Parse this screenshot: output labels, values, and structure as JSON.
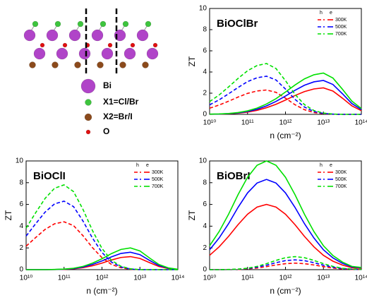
{
  "structure": {
    "legend": [
      "Bi",
      "X1=Cl/Br",
      "X2=Br/I",
      "O"
    ]
  },
  "chart_data": [
    {
      "type": "line",
      "title": "BiOClBr",
      "xlabel": "n (cm⁻²)",
      "ylabel": "ZT",
      "xscale": "log",
      "legend_headers": [
        "h",
        "e"
      ],
      "legend": "upper right",
      "x": [
        10000000000.0,
        17800000000.0,
        31600000000.0,
        56200000000.0,
        100000000000.0,
        178000000000.0,
        316000000000.0,
        562000000000.0,
        1000000000000.0,
        1780000000000.0,
        3160000000000.0,
        5620000000000.0,
        10000000000000.0,
        17800000000000.0,
        31600000000000.0,
        56200000000000.0,
        100000000000000.0
      ],
      "xlim": [
        10000000000.0,
        100000000000000.0
      ],
      "xticks": [
        {
          "value": 10000000000.0,
          "label": "10¹⁰"
        },
        {
          "value": 100000000000.0,
          "label": "10¹¹"
        },
        {
          "value": 1000000000000.0,
          "label": "10¹²"
        },
        {
          "value": 10000000000000.0,
          "label": "10¹³"
        },
        {
          "value": 100000000000000.0,
          "label": "10¹⁴"
        }
      ],
      "ylim": [
        0,
        10
      ],
      "yticks": [
        0,
        2,
        4,
        6,
        8,
        10
      ],
      "series": [
        {
          "name": "300K",
          "color": "#ff0000",
          "h": [
            0.58,
            0.88,
            1.24,
            1.63,
            1.98,
            2.21,
            2.3,
            2.08,
            1.53,
            0.91,
            0.44,
            0.17,
            0.06,
            0.01,
            0,
            0,
            0
          ],
          "e": [
            0.01,
            0.02,
            0.05,
            0.11,
            0.21,
            0.38,
            0.63,
            0.95,
            1.35,
            1.78,
            2.15,
            2.4,
            2.5,
            2.2,
            1.53,
            0.8,
            0.35
          ]
        },
        {
          "name": "500K",
          "color": "#0000ff",
          "h": [
            0.9,
            1.37,
            1.94,
            2.54,
            3.09,
            3.46,
            3.6,
            3.25,
            2.39,
            1.42,
            0.69,
            0.27,
            0.09,
            0.02,
            0,
            0,
            0
          ],
          "e": [
            0.01,
            0.03,
            0.07,
            0.14,
            0.27,
            0.48,
            0.8,
            1.22,
            1.73,
            2.27,
            2.75,
            3.07,
            3.2,
            2.82,
            1.95,
            1.02,
            0.45
          ]
        },
        {
          "name": "700K",
          "color": "#00e000",
          "h": [
            1.2,
            1.83,
            2.59,
            3.39,
            4.12,
            4.61,
            4.8,
            4.33,
            3.18,
            1.89,
            0.92,
            0.36,
            0.12,
            0.03,
            0,
            0,
            0
          ],
          "e": [
            0.02,
            0.04,
            0.08,
            0.17,
            0.33,
            0.59,
            0.98,
            1.48,
            2.11,
            2.77,
            3.35,
            3.74,
            3.9,
            3.43,
            2.38,
            1.25,
            0.55
          ]
        }
      ]
    },
    {
      "type": "line",
      "title": "BiOClI",
      "xlabel": "n (cm⁻²)",
      "ylabel": "ZT",
      "xscale": "log",
      "legend_headers": [
        "h",
        "e"
      ],
      "legend": "upper right",
      "x": [
        10000000000.0,
        17800000000.0,
        31600000000.0,
        56200000000.0,
        100000000000.0,
        178000000000.0,
        316000000000.0,
        562000000000.0,
        1000000000000.0,
        1780000000000.0,
        3160000000000.0,
        5620000000000.0,
        10000000000000.0,
        17800000000000.0,
        31600000000000.0,
        56200000000000.0,
        100000000000000.0
      ],
      "xlim": [
        10000000000.0,
        100000000000000.0
      ],
      "xticks": [
        {
          "value": 10000000000.0,
          "label": "10¹⁰"
        },
        {
          "value": 100000000000.0,
          "label": "10¹¹"
        },
        {
          "value": 1000000000000.0,
          "label": "10¹²"
        },
        {
          "value": 10000000000000.0,
          "label": "10¹³"
        },
        {
          "value": 100000000000000.0,
          "label": "10¹⁴"
        }
      ],
      "ylim": [
        0,
        10
      ],
      "yticks": [
        0,
        2,
        4,
        6,
        8,
        10
      ],
      "series": [
        {
          "name": "300K",
          "color": "#ff0000",
          "h": [
            2.16,
            2.95,
            3.7,
            4.22,
            4.4,
            4.05,
            3.12,
            2.02,
            1.1,
            0.48,
            0.18,
            0.04,
            0,
            0,
            0,
            0,
            0
          ],
          "e": [
            0,
            0,
            0,
            0.01,
            0.03,
            0.08,
            0.18,
            0.36,
            0.6,
            0.89,
            1.12,
            1.2,
            1.03,
            0.65,
            0.29,
            0.1,
            0.02
          ]
        },
        {
          "name": "500K",
          "color": "#0000ff",
          "h": [
            3.09,
            4.22,
            5.29,
            6.05,
            6.3,
            5.8,
            4.47,
            2.9,
            1.58,
            0.69,
            0.25,
            0.06,
            0,
            0,
            0,
            0,
            0
          ],
          "e": [
            0,
            0,
            0,
            0.01,
            0.04,
            0.1,
            0.24,
            0.48,
            0.8,
            1.18,
            1.49,
            1.6,
            1.38,
            0.86,
            0.38,
            0.13,
            0.03
          ]
        },
        {
          "name": "700K",
          "color": "#00e000",
          "h": [
            3.82,
            5.23,
            6.55,
            7.49,
            7.8,
            7.18,
            5.54,
            3.59,
            1.95,
            0.86,
            0.31,
            0.08,
            0,
            0,
            0,
            0,
            0
          ],
          "e": [
            0,
            0,
            0,
            0.02,
            0.05,
            0.13,
            0.3,
            0.6,
            1,
            1.48,
            1.86,
            2,
            1.72,
            1.08,
            0.48,
            0.16,
            0.04
          ]
        }
      ]
    },
    {
      "type": "line",
      "title": "BiOBrI",
      "xlabel": "n (cm⁻²)",
      "ylabel": "ZT",
      "xscale": "log",
      "legend_headers": [
        "h",
        "e"
      ],
      "legend": "upper right",
      "x": [
        10000000000.0,
        17800000000.0,
        31600000000.0,
        56200000000.0,
        100000000000.0,
        178000000000.0,
        316000000000.0,
        562000000000.0,
        1000000000000.0,
        1780000000000.0,
        3160000000000.0,
        5620000000000.0,
        10000000000000.0,
        17800000000000.0,
        31600000000000.0,
        56200000000000.0,
        100000000000000.0
      ],
      "xlim": [
        10000000000.0,
        100000000000000.0
      ],
      "xticks": [
        {
          "value": 10000000000.0,
          "label": "10¹⁰"
        },
        {
          "value": 100000000000.0,
          "label": "10¹¹"
        },
        {
          "value": 1000000000000.0,
          "label": "10¹²"
        },
        {
          "value": 10000000000000.0,
          "label": "10¹³"
        },
        {
          "value": 100000000000000.0,
          "label": "10¹⁴"
        }
      ],
      "ylim": [
        0,
        10
      ],
      "yticks": [
        0,
        2,
        4,
        6,
        8,
        10
      ],
      "series": [
        {
          "name": "300K",
          "color": "#ff0000",
          "h": [
            0,
            0,
            0.01,
            0.02,
            0.07,
            0.15,
            0.28,
            0.43,
            0.55,
            0.6,
            0.55,
            0.43,
            0.28,
            0.15,
            0.07,
            0.02,
            0.01
          ],
          "e": [
            1.32,
            2.1,
            3.06,
            4.14,
            5.1,
            5.76,
            6,
            5.76,
            5.1,
            4.14,
            3.06,
            2.1,
            1.32,
            0.78,
            0.42,
            0.18,
            0.12
          ]
        },
        {
          "name": "500K",
          "color": "#0000ff",
          "h": [
            0,
            0,
            0.01,
            0.04,
            0.1,
            0.23,
            0.41,
            0.64,
            0.83,
            0.9,
            0.83,
            0.64,
            0.41,
            0.23,
            0.1,
            0.04,
            0.01
          ],
          "e": [
            1.83,
            2.91,
            4.23,
            5.73,
            7.06,
            7.97,
            8.3,
            7.97,
            7.06,
            5.73,
            4.23,
            2.91,
            1.83,
            1.08,
            0.58,
            0.25,
            0.17
          ]
        },
        {
          "name": "700K",
          "color": "#00e000",
          "h": [
            0,
            0,
            0.02,
            0.05,
            0.13,
            0.3,
            0.55,
            0.85,
            1.1,
            1.2,
            1.1,
            0.85,
            0.55,
            0.3,
            0.13,
            0.05,
            0.02
          ],
          "e": [
            2.2,
            3.5,
            5.1,
            6.9,
            8.5,
            9.6,
            10,
            9.6,
            8.5,
            6.9,
            5.1,
            3.5,
            2.2,
            1.3,
            0.7,
            0.3,
            0.2
          ]
        }
      ]
    }
  ]
}
